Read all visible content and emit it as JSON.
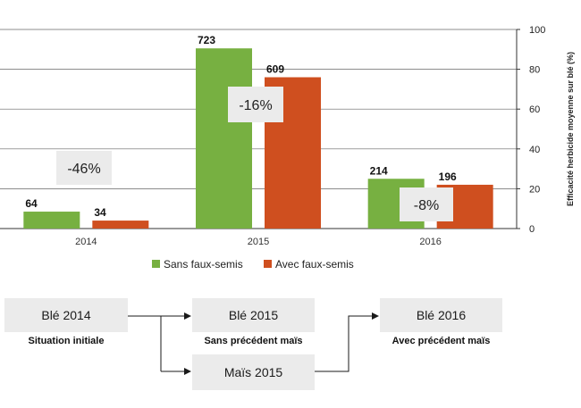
{
  "chart_data": {
    "type": "bar",
    "categories": [
      "2014",
      "2015",
      "2016"
    ],
    "series": [
      {
        "name": "Sans faux-semis",
        "color": "#77b041",
        "values": [
          8.5,
          90.5,
          25
        ]
      },
      {
        "name": "Avec faux-semis",
        "color": "#cf4f1f",
        "values": [
          4,
          76,
          22
        ]
      }
    ],
    "data_labels": [
      [
        "64",
        "34"
      ],
      [
        "723",
        "609"
      ],
      [
        "214",
        "196"
      ]
    ],
    "annotations": [
      "-46%",
      "-16%",
      "-8%"
    ],
    "ylabel": "Efficacité herbicide moyenne sur blé (%)",
    "ylim": [
      0,
      100
    ],
    "yticks": [
      "0",
      "20",
      "40",
      "60",
      "80",
      "100"
    ],
    "grid": true,
    "legend_position": "bottom"
  },
  "flow": {
    "boxes": [
      "Blé 2014",
      "Blé 2015",
      "Maïs 2015",
      "Blé 2016"
    ],
    "captions": [
      "Situation initiale",
      "Sans précédent maïs",
      "Avec précédent maïs"
    ]
  }
}
